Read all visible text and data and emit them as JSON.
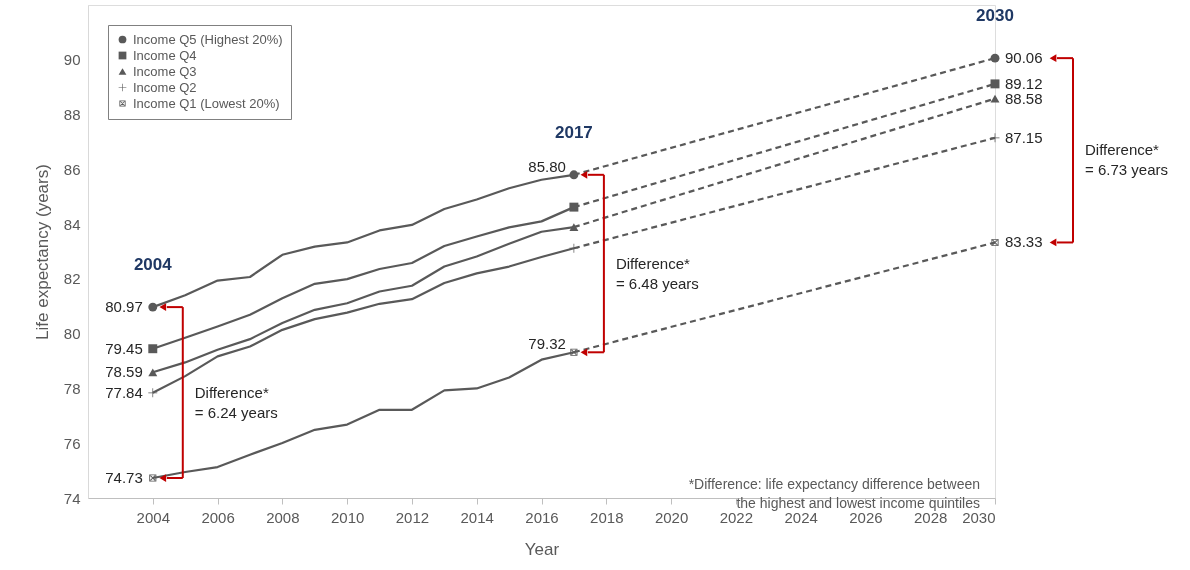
{
  "chart_data": {
    "type": "line",
    "xlabel": "Year",
    "ylabel": "Life expectancy (years)",
    "x": [
      2004,
      2005,
      2006,
      2007,
      2008,
      2009,
      2010,
      2011,
      2012,
      2013,
      2014,
      2015,
      2016,
      2017
    ],
    "xlim": [
      2002,
      2030
    ],
    "xticks": [
      2004,
      2006,
      2008,
      2010,
      2012,
      2014,
      2016,
      2018,
      2020,
      2022,
      2024,
      2026,
      2028,
      2030
    ],
    "ylim": [
      74,
      92
    ],
    "yticks": [
      74,
      76,
      78,
      80,
      82,
      84,
      86,
      88,
      90
    ],
    "legend": "top left",
    "grid": false,
    "series": [
      {
        "color": "#595959",
        "marker": "none",
        "line_style": "solid",
        "values": [
          80.97,
          81.4,
          81.94,
          82.07,
          82.88,
          83.18,
          83.33,
          83.77,
          83.97,
          84.55,
          84.9,
          85.31,
          85.62,
          85.8
        ]
      },
      {
        "color": "#595959",
        "marker": "none",
        "line_style": "solid",
        "values": [
          79.45,
          79.85,
          80.26,
          80.69,
          81.29,
          81.82,
          81.99,
          82.36,
          82.58,
          83.2,
          83.55,
          83.88,
          84.1,
          84.62
        ]
      },
      {
        "color": "#595959",
        "marker": "none",
        "line_style": "solid",
        "values": [
          78.59,
          78.95,
          79.41,
          79.8,
          80.39,
          80.87,
          81.11,
          81.54,
          81.75,
          82.45,
          82.82,
          83.28,
          83.72,
          83.89
        ]
      },
      {
        "color": "#595959",
        "marker": "none",
        "line_style": "solid",
        "values": [
          77.84,
          78.45,
          79.17,
          79.53,
          80.14,
          80.53,
          80.77,
          81.09,
          81.26,
          81.85,
          82.2,
          82.45,
          82.8,
          83.12
        ]
      },
      {
        "color": "#595959",
        "marker": "none",
        "line_style": "solid",
        "values": [
          74.73,
          74.95,
          75.13,
          75.58,
          76.01,
          76.49,
          76.68,
          77.22,
          77.22,
          77.93,
          78.0,
          78.4,
          79.05,
          79.32
        ]
      },
      {
        "color": "#595959",
        "marker": "none",
        "line_style": "dashed",
        "x": [
          2017,
          2030
        ],
        "values": [
          85.8,
          90.06
        ]
      },
      {
        "color": "#595959",
        "marker": "none",
        "line_style": "dashed",
        "x": [
          2017,
          2030
        ],
        "values": [
          84.62,
          89.12
        ]
      },
      {
        "color": "#595959",
        "marker": "none",
        "line_style": "dashed",
        "x": [
          2017,
          2030
        ],
        "values": [
          83.89,
          88.58
        ]
      },
      {
        "color": "#595959",
        "marker": "none",
        "line_style": "dashed",
        "x": [
          2017,
          2030
        ],
        "values": [
          83.12,
          87.15
        ]
      },
      {
        "color": "#595959",
        "marker": "none",
        "line_style": "dashed",
        "x": [
          2017,
          2030
        ],
        "values": [
          79.32,
          83.33
        ]
      },
      {
        "type": "scatter",
        "name": "Income Q5 (Highest 20%)",
        "color": "#595959",
        "marker": "circle",
        "x": [
          2004,
          2017,
          2030
        ],
        "values": [
          80.97,
          85.8,
          90.06
        ],
        "value_labels": [
          "80.97",
          "85.80",
          "90.06"
        ]
      },
      {
        "type": "scatter",
        "name": "Income Q4",
        "color": "#595959",
        "marker": "square",
        "x": [
          2004,
          2017,
          2030
        ],
        "values": [
          79.45,
          84.62,
          89.12
        ],
        "value_labels": [
          "79.45",
          null,
          "89.12"
        ]
      },
      {
        "type": "scatter",
        "name": "Income Q3",
        "color": "#595959",
        "marker": "triangle",
        "x": [
          2004,
          2017,
          2030
        ],
        "values": [
          78.59,
          83.89,
          88.58
        ],
        "value_labels": [
          "78.59",
          null,
          "88.58"
        ]
      },
      {
        "type": "scatter",
        "name": "Income Q2",
        "color": "#595959",
        "marker": "cross",
        "x": [
          2004,
          2017,
          2030
        ],
        "values": [
          77.84,
          83.12,
          87.15
        ],
        "value_labels": [
          "77.84",
          null,
          "87.15"
        ]
      },
      {
        "type": "scatter",
        "name": "Income Q1 (Lowest 20%)",
        "color": "#595959",
        "marker": "x",
        "x": [
          2004,
          2017,
          2030
        ],
        "values": [
          74.73,
          79.32,
          83.33
        ],
        "value_labels": [
          "74.73",
          "79.32",
          "83.33"
        ]
      }
    ],
    "annotations": [
      "2004",
      "2017",
      "2030",
      "Difference*\n= 6.24 years",
      "Difference*\n= 6.48 years",
      "Difference*\n= 6.73 years",
      "*Difference: life expectancy difference between\nthe highest and lowest income quintiles"
    ]
  }
}
